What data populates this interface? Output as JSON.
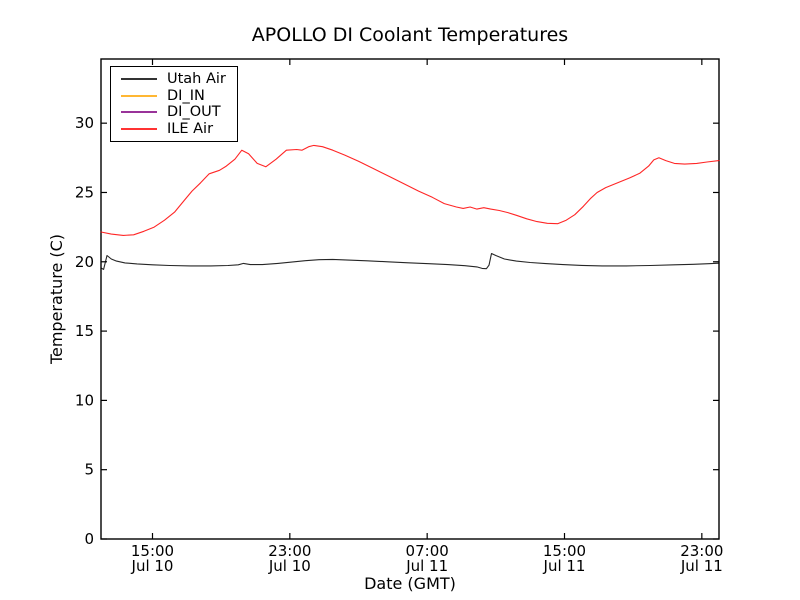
{
  "figure": {
    "background": "#ffffff",
    "axis_color": "#000000"
  },
  "chart_data": {
    "type": "line",
    "title": "APOLLO DI Coolant Temperatures",
    "xlabel": "Date (GMT)",
    "ylabel": "Temperature (C)",
    "grid": false,
    "legend_position": "upper left",
    "x_unit": "hours since Jul 10 12:00 GMT",
    "xlim_hours": [
      0,
      36
    ],
    "ylim": [
      0,
      34.6
    ],
    "x_ticks": [
      {
        "hours": 3,
        "time": "15:00",
        "date": "Jul 10"
      },
      {
        "hours": 11,
        "time": "23:00",
        "date": "Jul 10"
      },
      {
        "hours": 19,
        "time": "07:00",
        "date": "Jul 11"
      },
      {
        "hours": 27,
        "time": "15:00",
        "date": "Jul 11"
      },
      {
        "hours": 35,
        "time": "23:00",
        "date": "Jul 11"
      }
    ],
    "y_ticks": [
      0,
      5,
      10,
      15,
      20,
      25,
      30
    ],
    "series": [
      {
        "name": "Utah Air",
        "color": "#000000",
        "visible_in_plot": true,
        "points": [
          [
            0,
            19.55
          ],
          [
            0.15,
            19.45
          ],
          [
            0.35,
            20.45
          ],
          [
            0.6,
            20.2
          ],
          [
            0.9,
            20.05
          ],
          [
            1.4,
            19.92
          ],
          [
            2.1,
            19.85
          ],
          [
            3.0,
            19.78
          ],
          [
            4.0,
            19.73
          ],
          [
            5.2,
            19.7
          ],
          [
            6.4,
            19.7
          ],
          [
            7.4,
            19.73
          ],
          [
            8.0,
            19.78
          ],
          [
            8.3,
            19.88
          ],
          [
            8.7,
            19.8
          ],
          [
            9.4,
            19.8
          ],
          [
            10.3,
            19.88
          ],
          [
            11.1,
            19.98
          ],
          [
            11.9,
            20.08
          ],
          [
            12.7,
            20.15
          ],
          [
            13.5,
            20.17
          ],
          [
            14.4,
            20.12
          ],
          [
            15.5,
            20.07
          ],
          [
            16.7,
            20.0
          ],
          [
            17.9,
            19.93
          ],
          [
            19.1,
            19.86
          ],
          [
            20.2,
            19.8
          ],
          [
            21.2,
            19.72
          ],
          [
            21.9,
            19.63
          ],
          [
            22.2,
            19.52
          ],
          [
            22.45,
            19.5
          ],
          [
            22.6,
            19.75
          ],
          [
            22.75,
            20.6
          ],
          [
            23.0,
            20.45
          ],
          [
            23.5,
            20.2
          ],
          [
            24.2,
            20.05
          ],
          [
            25.0,
            19.95
          ],
          [
            25.9,
            19.87
          ],
          [
            26.9,
            19.8
          ],
          [
            28.0,
            19.74
          ],
          [
            29.2,
            19.7
          ],
          [
            30.6,
            19.7
          ],
          [
            32.0,
            19.73
          ],
          [
            33.4,
            19.78
          ],
          [
            34.5,
            19.82
          ],
          [
            35.4,
            19.86
          ],
          [
            36,
            19.9
          ]
        ]
      },
      {
        "name": "DI_IN",
        "color": "#ffa500",
        "visible_in_plot": false,
        "points": []
      },
      {
        "name": "DI_OUT",
        "color": "#800080",
        "visible_in_plot": false,
        "points": []
      },
      {
        "name": "ILE Air",
        "color": "#ff0000",
        "visible_in_plot": true,
        "points": [
          [
            0,
            22.15
          ],
          [
            0.6,
            22.0
          ],
          [
            1.3,
            21.9
          ],
          [
            1.9,
            21.95
          ],
          [
            2.5,
            22.2
          ],
          [
            3.1,
            22.5
          ],
          [
            3.7,
            23.0
          ],
          [
            4.3,
            23.6
          ],
          [
            4.9,
            24.5
          ],
          [
            5.3,
            25.1
          ],
          [
            5.8,
            25.7
          ],
          [
            6.3,
            26.35
          ],
          [
            6.9,
            26.6
          ],
          [
            7.3,
            26.9
          ],
          [
            7.8,
            27.4
          ],
          [
            8.2,
            28.05
          ],
          [
            8.6,
            27.8
          ],
          [
            9.1,
            27.1
          ],
          [
            9.6,
            26.85
          ],
          [
            10.2,
            27.4
          ],
          [
            10.8,
            28.05
          ],
          [
            11.4,
            28.1
          ],
          [
            11.7,
            28.05
          ],
          [
            12.1,
            28.3
          ],
          [
            12.4,
            28.4
          ],
          [
            12.9,
            28.3
          ],
          [
            13.5,
            28.05
          ],
          [
            14.2,
            27.7
          ],
          [
            15.0,
            27.25
          ],
          [
            15.9,
            26.7
          ],
          [
            16.8,
            26.15
          ],
          [
            17.7,
            25.6
          ],
          [
            18.5,
            25.1
          ],
          [
            19.3,
            24.65
          ],
          [
            20.0,
            24.2
          ],
          [
            20.7,
            23.95
          ],
          [
            21.1,
            23.85
          ],
          [
            21.5,
            23.95
          ],
          [
            21.9,
            23.8
          ],
          [
            22.3,
            23.9
          ],
          [
            22.7,
            23.8
          ],
          [
            23.2,
            23.7
          ],
          [
            23.7,
            23.55
          ],
          [
            24.2,
            23.35
          ],
          [
            24.8,
            23.1
          ],
          [
            25.4,
            22.9
          ],
          [
            26.0,
            22.78
          ],
          [
            26.6,
            22.75
          ],
          [
            27.1,
            23.0
          ],
          [
            27.6,
            23.4
          ],
          [
            28.1,
            24.0
          ],
          [
            28.5,
            24.55
          ],
          [
            28.9,
            25.0
          ],
          [
            29.4,
            25.35
          ],
          [
            30.1,
            25.7
          ],
          [
            30.8,
            26.05
          ],
          [
            31.4,
            26.4
          ],
          [
            31.9,
            26.9
          ],
          [
            32.2,
            27.35
          ],
          [
            32.5,
            27.5
          ],
          [
            32.9,
            27.3
          ],
          [
            33.4,
            27.1
          ],
          [
            34.0,
            27.05
          ],
          [
            34.7,
            27.1
          ],
          [
            35.3,
            27.2
          ],
          [
            36,
            27.3
          ]
        ]
      }
    ]
  }
}
